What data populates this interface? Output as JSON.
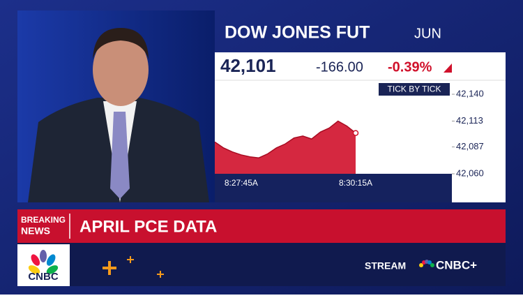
{
  "header": {
    "title": "DOW JONES FUT",
    "contract": "JUN"
  },
  "quote": {
    "price": "42,101",
    "change": "-166.00",
    "percent": "-0.39%"
  },
  "chart_data": {
    "type": "area",
    "label": "TICK BY TICK",
    "color": "#d0112b",
    "categories": [
      null,
      null,
      null,
      "8:27:45A",
      null,
      null,
      null,
      null,
      null,
      null,
      null,
      null,
      null,
      null,
      null,
      null,
      "8:30:15A"
    ],
    "values": [
      42092,
      42086,
      42082,
      42079,
      42077,
      42076,
      42080,
      42086,
      42090,
      42096,
      42098,
      42095,
      42102,
      42106,
      42113,
      42108,
      42101
    ],
    "ylim": [
      42060,
      42150
    ],
    "yticks": [
      {
        "value": 42140,
        "label": "42,140"
      },
      {
        "value": 42113,
        "label": "42,113"
      },
      {
        "value": 42087,
        "label": "42,087"
      },
      {
        "value": 42060,
        "label": "42,060"
      }
    ]
  },
  "banner": {
    "tag_line1": "BREAKING",
    "tag_line2": "NEWS",
    "headline": "APRIL PCE DATA"
  },
  "footer": {
    "logo": "CNBC",
    "stream": "STREAM",
    "brand": "CNBC+"
  }
}
